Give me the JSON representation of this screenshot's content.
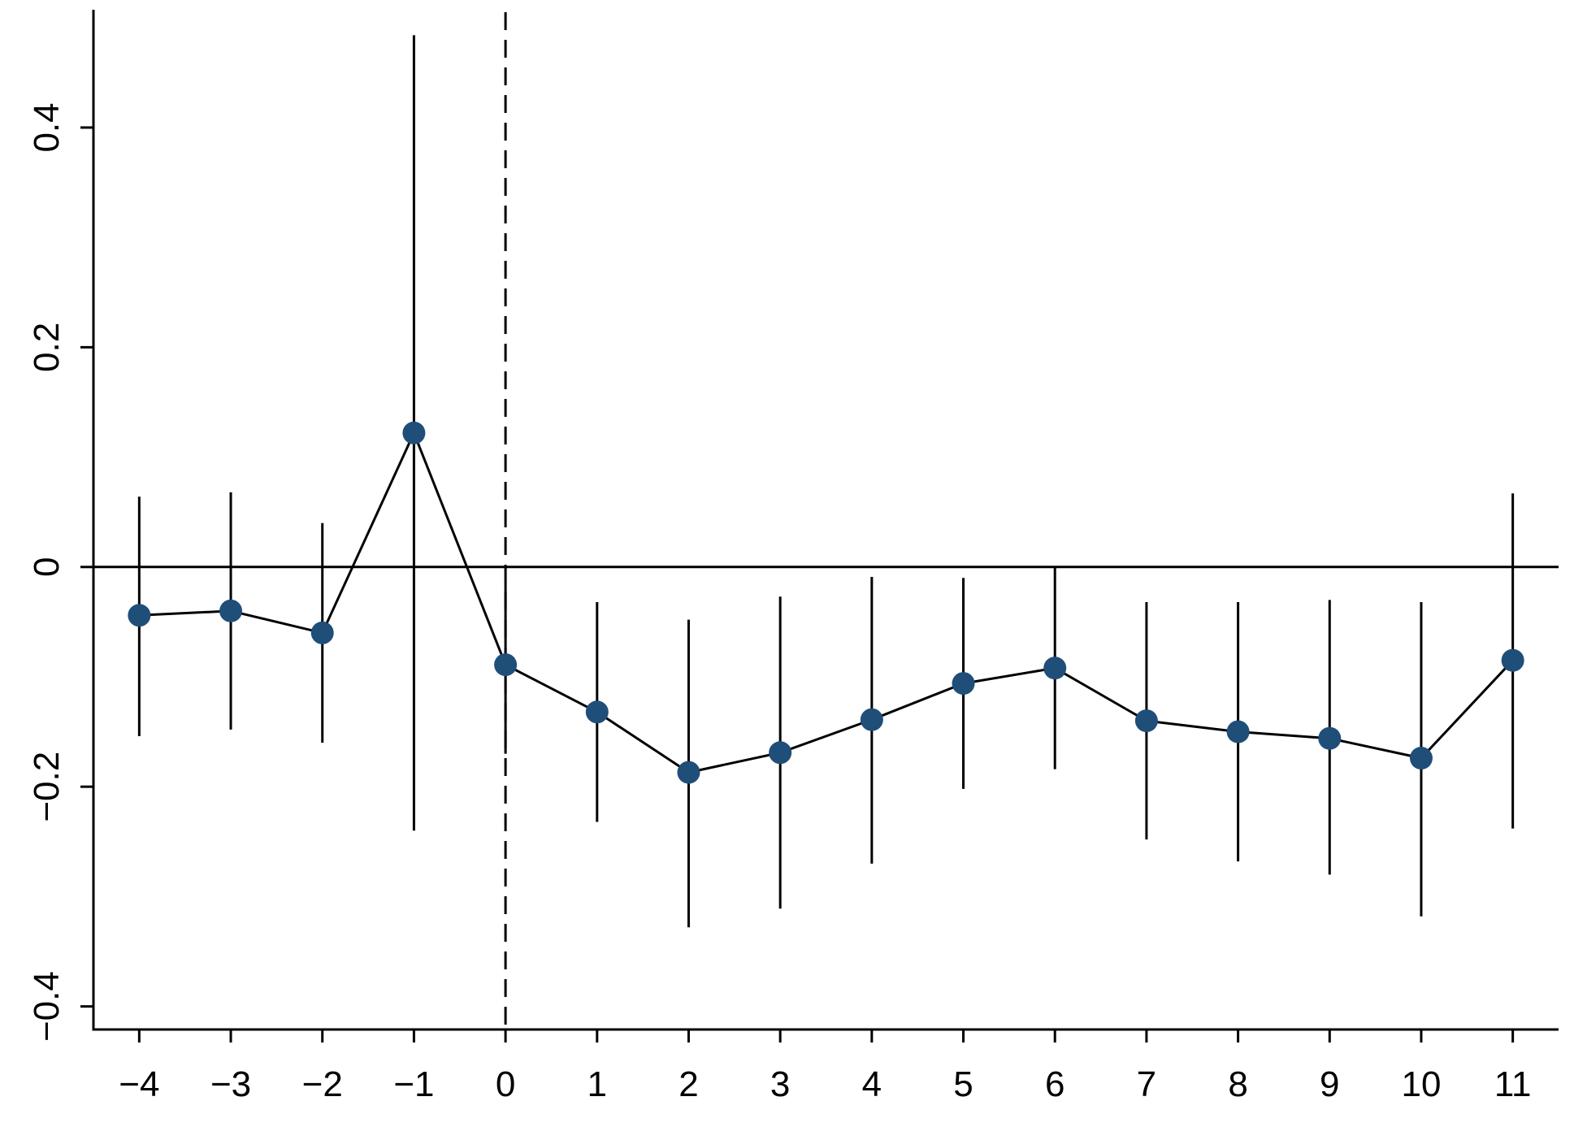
{
  "chart_data": {
    "type": "scatter",
    "title": "",
    "xlabel": "",
    "ylabel": "",
    "x": [
      -4,
      -3,
      -2,
      -1,
      0,
      1,
      2,
      3,
      4,
      5,
      6,
      7,
      8,
      9,
      10,
      11
    ],
    "series": [
      {
        "values": [
          -0.044,
          -0.04,
          -0.06,
          0.122,
          -0.089,
          -0.132,
          -0.187,
          -0.169,
          -0.139,
          -0.106,
          -0.092,
          -0.14,
          -0.15,
          -0.156,
          -0.174,
          -0.085
        ],
        "ci_lower": [
          -0.154,
          -0.148,
          -0.16,
          -0.24,
          -0.17,
          -0.232,
          -0.328,
          -0.311,
          -0.27,
          -0.202,
          -0.184,
          -0.248,
          -0.268,
          -0.28,
          -0.318,
          -0.238
        ],
        "ci_upper": [
          0.064,
          0.068,
          0.04,
          0.484,
          -0.014,
          -0.032,
          -0.048,
          -0.027,
          -0.009,
          -0.01,
          0.0,
          -0.032,
          -0.032,
          -0.03,
          -0.032,
          0.067
        ]
      }
    ],
    "x_ticks": [
      "−4",
      "−3",
      "−2",
      "−1",
      "0",
      "1",
      "2",
      "3",
      "4",
      "5",
      "6",
      "7",
      "8",
      "9",
      "10",
      "11"
    ],
    "x_tick_values": [
      -4,
      -3,
      -2,
      -1,
      0,
      1,
      2,
      3,
      4,
      5,
      6,
      7,
      8,
      9,
      10,
      11
    ],
    "y_ticks": [
      "−0.4",
      "−0.2",
      "0",
      "0.2",
      "0.4"
    ],
    "y_tick_values": [
      -0.4,
      -0.2,
      0,
      0.2,
      0.4
    ],
    "xlim": [
      -4.5,
      11.5
    ],
    "ylim": [
      -0.421,
      0.505
    ],
    "reference_lines": {
      "horizontal_y": 0,
      "vertical_dashed_x": 0
    },
    "grid": false,
    "legend": "none",
    "colors": {
      "marker": "#1f4e79",
      "line": "#000000",
      "axis": "#000000"
    }
  }
}
